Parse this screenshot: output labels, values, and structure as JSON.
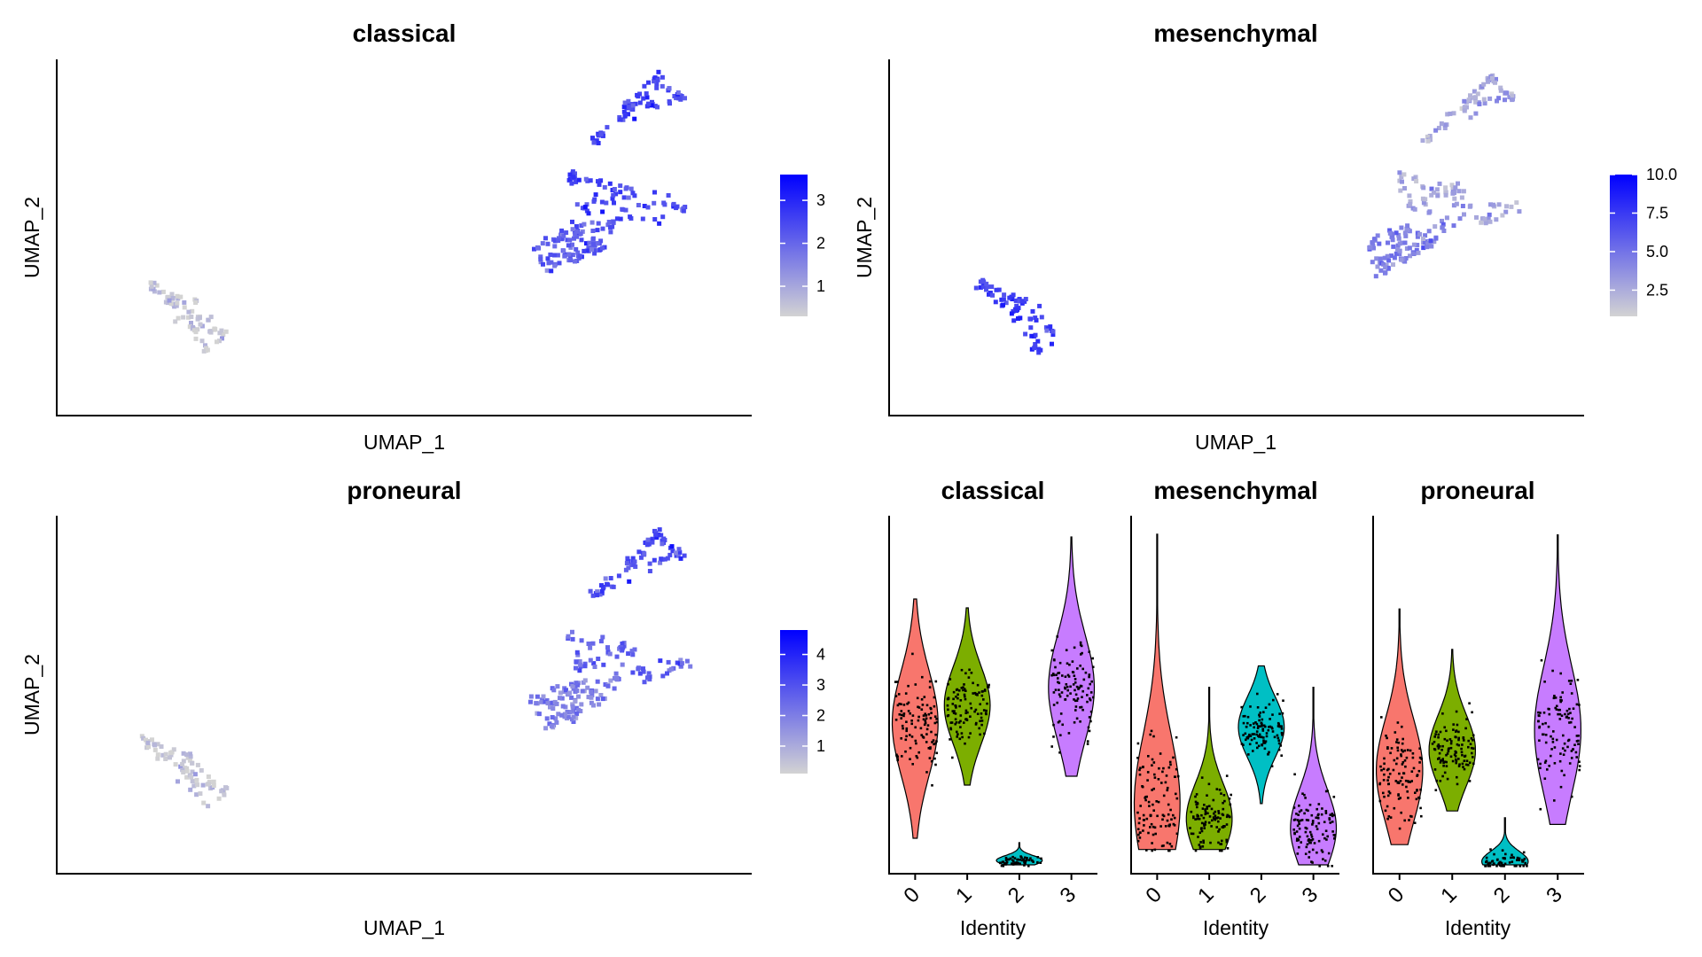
{
  "figure": {
    "umap_panels": [
      {
        "key": "classical",
        "title": "classical",
        "xlabel": "UMAP_1",
        "ylabel": "UMAP_2",
        "legend": {
          "ticks": [
            1,
            2,
            3
          ],
          "min": 0.3,
          "max": 3.6
        }
      },
      {
        "key": "mesenchymal",
        "title": "mesenchymal",
        "xlabel": "UMAP_1",
        "ylabel": "UMAP_2",
        "legend": {
          "ticks": [
            "2.5",
            "5.0",
            "7.5",
            "10.0"
          ],
          "min": 0.8,
          "max": 10.0
        }
      },
      {
        "key": "proneural",
        "title": "proneural",
        "xlabel": "UMAP_1",
        "ylabel": "UMAP_2",
        "legend": {
          "ticks": [
            1,
            2,
            3,
            4
          ],
          "min": 0.1,
          "max": 4.8
        }
      }
    ],
    "violin_panels": [
      {
        "key": "classical",
        "title": "classical",
        "xlabel": "Identity"
      },
      {
        "key": "mesenchymal",
        "title": "mesenchymal",
        "xlabel": "Identity"
      },
      {
        "key": "proneural",
        "title": "proneural",
        "xlabel": "Identity"
      }
    ],
    "identities": [
      "0",
      "1",
      "2",
      "3"
    ],
    "identity_colors": {
      "0": "#F8766D",
      "1": "#7CAE00",
      "2": "#00BFC4",
      "3": "#C77CFF"
    },
    "color_scale": {
      "low": "#d3d3d3",
      "high": "#0000ff"
    }
  },
  "chart_data": [
    {
      "type": "scatter",
      "title": "classical",
      "xlabel": "UMAP_1",
      "ylabel": "UMAP_2",
      "color_scale": {
        "low": "#d3d3d3",
        "high": "#0000ff",
        "range": [
          0.3,
          3.6
        ],
        "ticks": [
          1,
          2,
          3
        ]
      },
      "clusters": [
        {
          "name": "0",
          "approx_center": [
            6.0,
            1.5
          ],
          "mean_value": 2.2
        },
        {
          "name": "1",
          "approx_center": [
            7.5,
            3.5
          ],
          "mean_value": 2.5
        },
        {
          "name": "2",
          "approx_center": [
            -8.0,
            -3.0
          ],
          "mean_value": 0.4
        },
        {
          "name": "3",
          "approx_center": [
            7.0,
            7.5
          ],
          "mean_value": 2.6
        }
      ]
    },
    {
      "type": "scatter",
      "title": "mesenchymal",
      "xlabel": "UMAP_1",
      "ylabel": "UMAP_2",
      "color_scale": {
        "low": "#d3d3d3",
        "high": "#0000ff",
        "range": [
          0.8,
          10.0
        ],
        "ticks": [
          2.5,
          5.0,
          7.5,
          10.0
        ]
      },
      "clusters": [
        {
          "name": "0",
          "approx_center": [
            6.0,
            1.5
          ],
          "mean_value": 4.5
        },
        {
          "name": "1",
          "approx_center": [
            7.5,
            3.5
          ],
          "mean_value": 3.0
        },
        {
          "name": "2",
          "approx_center": [
            -8.0,
            -3.0
          ],
          "mean_value": 7.5
        },
        {
          "name": "3",
          "approx_center": [
            7.0,
            7.5
          ],
          "mean_value": 2.8
        }
      ]
    },
    {
      "type": "scatter",
      "title": "proneural",
      "xlabel": "UMAP_1",
      "ylabel": "UMAP_2",
      "color_scale": {
        "low": "#d3d3d3",
        "high": "#0000ff",
        "range": [
          0.1,
          4.8
        ],
        "ticks": [
          1,
          2,
          3,
          4
        ]
      },
      "clusters": [
        {
          "name": "0",
          "approx_center": [
            6.0,
            1.5
          ],
          "mean_value": 2.0
        },
        {
          "name": "1",
          "approx_center": [
            7.5,
            3.5
          ],
          "mean_value": 2.6
        },
        {
          "name": "2",
          "approx_center": [
            -8.0,
            -3.0
          ],
          "mean_value": 0.3
        },
        {
          "name": "3",
          "approx_center": [
            7.0,
            7.5
          ],
          "mean_value": 3.2
        }
      ]
    },
    {
      "type": "violin",
      "title": "classical",
      "xlabel": "Identity",
      "ylabel": "",
      "categories": [
        "0",
        "1",
        "2",
        "3"
      ],
      "ylim": [
        0,
        3.8
      ],
      "distributions": [
        {
          "name": "0",
          "min": 0.3,
          "max": 3.0,
          "median": 1.6
        },
        {
          "name": "1",
          "min": 0.9,
          "max": 2.9,
          "median": 1.8
        },
        {
          "name": "2",
          "min": 0.0,
          "max": 0.25,
          "median": 0.05
        },
        {
          "name": "3",
          "min": 1.0,
          "max": 3.7,
          "median": 2.0
        }
      ]
    },
    {
      "type": "violin",
      "title": "mesenchymal",
      "xlabel": "Identity",
      "ylabel": "",
      "categories": [
        "0",
        "1",
        "2",
        "3"
      ],
      "ylim": [
        0,
        11
      ],
      "distributions": [
        {
          "name": "0",
          "min": 0.5,
          "max": 10.8,
          "median": 2.0
        },
        {
          "name": "1",
          "min": 0.5,
          "max": 5.8,
          "median": 1.5
        },
        {
          "name": "2",
          "min": 2.0,
          "max": 6.5,
          "median": 4.5
        },
        {
          "name": "3",
          "min": 0.0,
          "max": 5.8,
          "median": 1.2
        }
      ]
    },
    {
      "type": "violin",
      "title": "proneural",
      "xlabel": "Identity",
      "ylabel": "",
      "categories": [
        "0",
        "1",
        "2",
        "3"
      ],
      "ylim": [
        0,
        5
      ],
      "distributions": [
        {
          "name": "0",
          "min": 0.3,
          "max": 3.8,
          "median": 1.4
        },
        {
          "name": "1",
          "min": 0.8,
          "max": 3.2,
          "median": 1.7
        },
        {
          "name": "2",
          "min": 0.0,
          "max": 0.7,
          "median": 0.05
        },
        {
          "name": "3",
          "min": 0.6,
          "max": 4.9,
          "median": 2.0
        }
      ]
    }
  ]
}
